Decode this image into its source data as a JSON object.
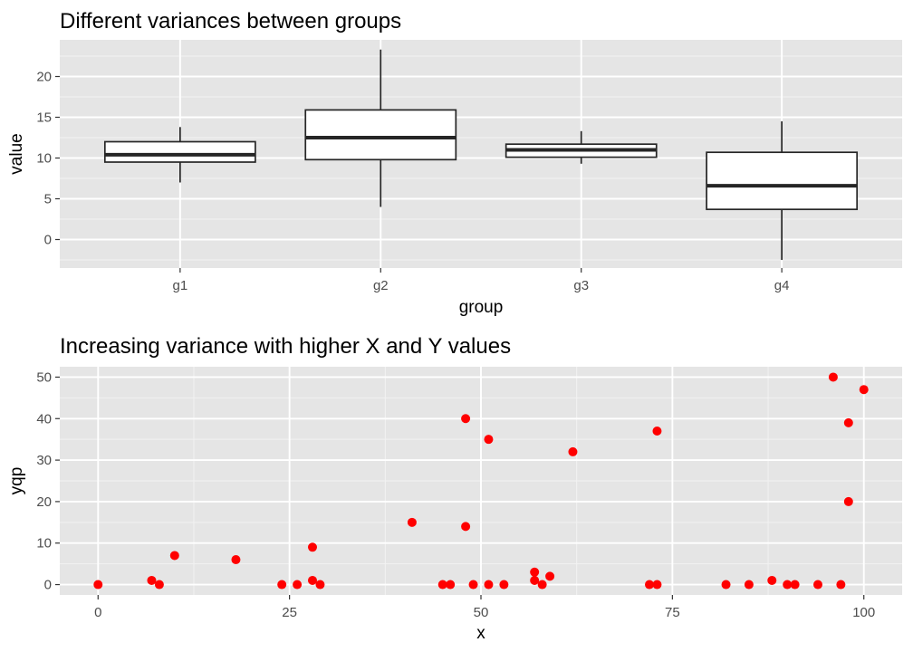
{
  "chart_data": [
    {
      "type": "box",
      "title": "Different variances between groups",
      "xlabel": "group",
      "ylabel": "value",
      "ylim": [
        -3.5,
        24.5
      ],
      "yticks": [
        0,
        5,
        10,
        15,
        20
      ],
      "ytick_labels": [
        "0",
        "5",
        "10",
        "15",
        "20"
      ],
      "categories": [
        "g1",
        "g2",
        "g3",
        "g4"
      ],
      "boxes": [
        {
          "group": "g1",
          "whisker_low": 7.0,
          "q1": 9.5,
          "median": 10.4,
          "q3": 12.0,
          "whisker_high": 13.8
        },
        {
          "group": "g2",
          "whisker_low": 4.0,
          "q1": 9.8,
          "median": 12.5,
          "q3": 15.9,
          "whisker_high": 23.3
        },
        {
          "group": "g3",
          "whisker_low": 9.3,
          "q1": 10.1,
          "median": 11.0,
          "q3": 11.7,
          "whisker_high": 13.3
        },
        {
          "group": "g4",
          "whisker_low": -2.5,
          "q1": 3.7,
          "median": 6.6,
          "q3": 10.7,
          "whisker_high": 14.5
        }
      ]
    },
    {
      "type": "scatter",
      "title": "Increasing variance with higher X and Y values",
      "xlabel": "x",
      "ylabel": "yqp",
      "xlim": [
        -5,
        105
      ],
      "ylim": [
        -2.5,
        52.5
      ],
      "xticks": [
        0,
        25,
        50,
        75,
        100
      ],
      "xtick_labels": [
        "0",
        "25",
        "50",
        "75",
        "100"
      ],
      "yticks": [
        0,
        10,
        20,
        30,
        40,
        50
      ],
      "ytick_labels": [
        "0",
        "10",
        "20",
        "30",
        "40",
        "50"
      ],
      "color": "#ff0000",
      "points": [
        [
          0,
          0
        ],
        [
          7,
          1
        ],
        [
          8,
          0
        ],
        [
          10,
          7
        ],
        [
          18,
          6
        ],
        [
          24,
          0
        ],
        [
          26,
          0
        ],
        [
          28,
          9
        ],
        [
          28,
          1
        ],
        [
          29,
          0
        ],
        [
          41,
          15
        ],
        [
          45,
          0
        ],
        [
          46,
          0
        ],
        [
          48,
          40
        ],
        [
          48,
          14
        ],
        [
          49,
          0
        ],
        [
          51,
          35
        ],
        [
          51,
          0
        ],
        [
          53,
          0
        ],
        [
          57,
          3
        ],
        [
          57,
          1
        ],
        [
          58,
          0
        ],
        [
          59,
          2
        ],
        [
          62,
          32
        ],
        [
          72,
          0
        ],
        [
          73,
          37
        ],
        [
          73,
          0
        ],
        [
          82,
          0
        ],
        [
          85,
          0
        ],
        [
          88,
          1
        ],
        [
          90,
          0
        ],
        [
          91,
          0
        ],
        [
          94,
          0
        ],
        [
          96,
          50
        ],
        [
          97,
          0
        ],
        [
          98,
          39
        ],
        [
          98,
          20
        ],
        [
          100,
          47
        ]
      ]
    }
  ]
}
